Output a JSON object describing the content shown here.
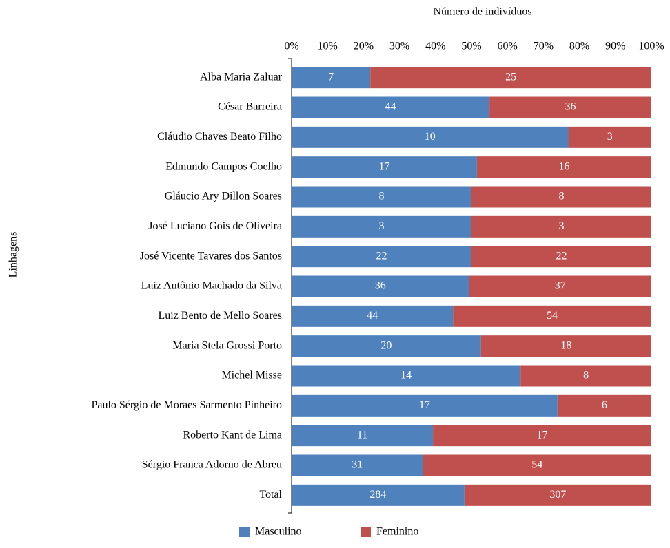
{
  "chart_data": {
    "type": "bar",
    "orientation": "horizontal",
    "stacking": "percent",
    "x_label": "Número de indivíduos",
    "y_label": "Linhagens",
    "categories": [
      "Alba Maria Zaluar",
      "César Barreira",
      "Cláudio Chaves Beato Filho",
      "Edmundo Campos Coelho",
      "Gláucio Ary Dillon Soares",
      "José Luciano Gois de Oliveira",
      "José Vicente Tavares dos Santos",
      "Luiz Antônio Machado da Silva",
      "Luiz Bento de Mello Soares",
      "Maria Stela Grossi Porto",
      "Michel Misse",
      "Paulo Sérgio de Moraes Sarmento Pinheiro",
      "Roberto Kant de Lima",
      "Sérgio Franca Adorno de Abreu",
      "Total"
    ],
    "series": [
      {
        "name": "Masculino",
        "color": "#4f81bd",
        "values": [
          7,
          44,
          10,
          17,
          8,
          3,
          22,
          36,
          44,
          20,
          14,
          17,
          11,
          31,
          284
        ]
      },
      {
        "name": "Feminino",
        "color": "#c0504d",
        "values": [
          25,
          36,
          3,
          16,
          8,
          3,
          22,
          37,
          54,
          18,
          8,
          6,
          17,
          54,
          307
        ]
      }
    ],
    "xlim": [
      0,
      100
    ],
    "xticks": [
      {
        "value": 0,
        "label": "0%"
      },
      {
        "value": 10,
        "label": "10%"
      },
      {
        "value": 20,
        "label": "20%"
      },
      {
        "value": 30,
        "label": "30%"
      },
      {
        "value": 40,
        "label": "40%"
      },
      {
        "value": 50,
        "label": "50%"
      },
      {
        "value": 60,
        "label": "60%"
      },
      {
        "value": 70,
        "label": "70%"
      },
      {
        "value": 80,
        "label": "80%"
      },
      {
        "value": 90,
        "label": "90%"
      },
      {
        "value": 100,
        "label": "100%"
      }
    ],
    "legend": "bottom"
  }
}
